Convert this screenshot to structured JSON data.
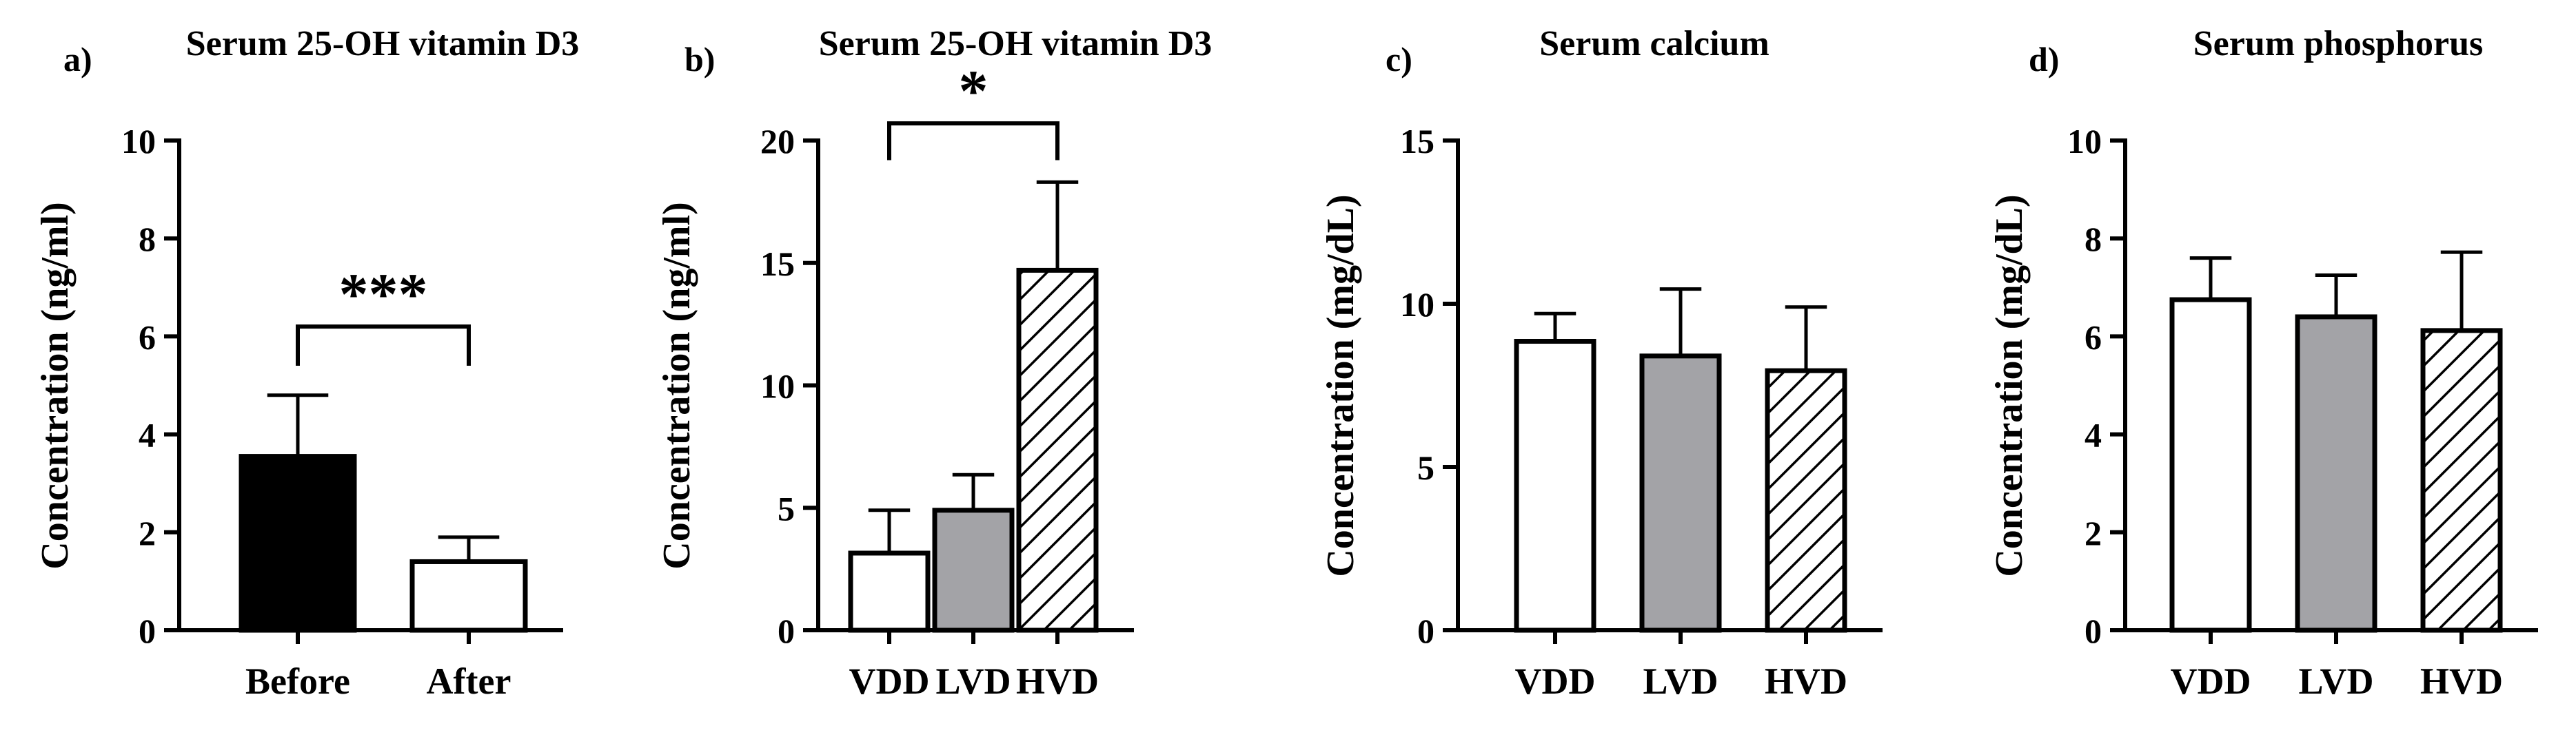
{
  "chart_data": [
    {
      "panel_label": "a)",
      "type": "bar",
      "title": "Serum 25-OH vitamin D3",
      "ylabel": "Concentration (ng/ml)",
      "xlabel": "",
      "ylim": [
        0,
        10
      ],
      "yticks": [
        "0",
        "2",
        "4",
        "6",
        "8",
        "10"
      ],
      "categories": [
        "Before",
        "After"
      ],
      "values": [
        3.55,
        1.4
      ],
      "errors": [
        1.25,
        0.5
      ],
      "fills": [
        "solid-black",
        "white"
      ],
      "significance": [
        {
          "from": 0,
          "to": 1,
          "label": "***",
          "y": 6.2,
          "drop": 0.8
        }
      ]
    },
    {
      "panel_label": "b)",
      "type": "bar",
      "title": "Serum 25-OH vitamin D3",
      "ylabel": "Concentration (ng/ml)",
      "xlabel": "",
      "ylim": [
        0,
        20
      ],
      "yticks": [
        "0",
        "5",
        "10",
        "15",
        "20"
      ],
      "categories": [
        "VDD",
        "LVD",
        "HVD"
      ],
      "values": [
        3.15,
        4.9,
        14.7
      ],
      "errors": [
        1.75,
        1.45,
        3.6
      ],
      "fills": [
        "white",
        "gray",
        "hatched"
      ],
      "significance": [
        {
          "from": 0,
          "to": 2,
          "label": "*",
          "y": 20.7,
          "drop": 1.5
        }
      ]
    },
    {
      "panel_label": "c)",
      "type": "bar",
      "title": "Serum calcium",
      "ylabel": "Concentration (mg/dL)",
      "xlabel": "",
      "ylim": [
        0,
        15
      ],
      "yticks": [
        "0",
        "5",
        "10",
        "15"
      ],
      "categories": [
        "VDD",
        "LVD",
        "HVD"
      ],
      "values": [
        8.85,
        8.4,
        7.95
      ],
      "errors": [
        0.85,
        2.05,
        1.95
      ],
      "fills": [
        "white",
        "gray",
        "hatched"
      ],
      "significance": []
    },
    {
      "panel_label": "d)",
      "type": "bar",
      "title": "Serum phosphorus",
      "ylabel": "Concentration (mg/dL)",
      "xlabel": "",
      "ylim": [
        0,
        10
      ],
      "yticks": [
        "0",
        "2",
        "4",
        "6",
        "8",
        "10"
      ],
      "categories": [
        "VDD",
        "LVD",
        "HVD"
      ],
      "values": [
        6.75,
        6.4,
        6.12
      ],
      "errors": [
        0.85,
        0.85,
        1.6
      ],
      "fills": [
        "white",
        "gray",
        "hatched"
      ],
      "significance": []
    }
  ],
  "colors": {
    "ink": "#000000",
    "bar_gray": "#a3a3a7",
    "bar_white": "#ffffff"
  }
}
